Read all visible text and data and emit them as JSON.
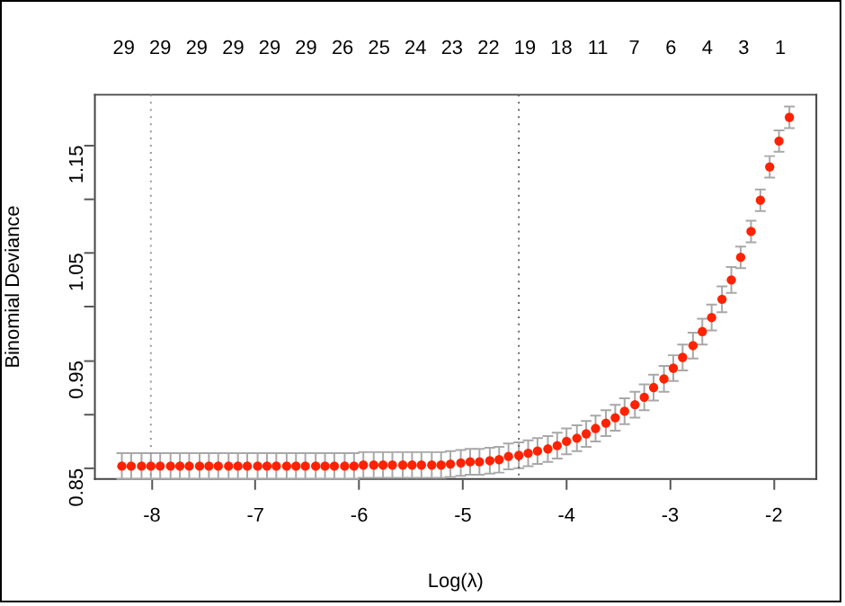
{
  "chart_data": {
    "type": "scatter",
    "xlabel": "Log(λ)",
    "ylabel": "Binomial Deviance",
    "marker": "circle",
    "grid": false,
    "legend": false,
    "xlim": [
      -8.55,
      -1.59
    ],
    "xticks": [
      -8,
      -7,
      -6,
      -5,
      -4,
      -3,
      -2
    ],
    "ylim": [
      0.84,
      1.197
    ],
    "yticks": [
      0.85,
      {
        "value": 0.9,
        "label": null
      },
      0.95,
      {
        "value": 1.0,
        "label": null
      },
      1.05,
      {
        "value": 1.1,
        "label": null
      },
      1.15
    ],
    "annotations": [
      "29",
      "29",
      "29",
      "29",
      "29",
      "29",
      "26",
      "25",
      "24",
      "23",
      "22",
      "19",
      "18",
      "11",
      "7",
      "6",
      "4",
      "3",
      "1"
    ],
    "ref_lines": [
      {
        "axis": "x",
        "value": -8.01,
        "color": "#999999",
        "line_style": "dotted"
      },
      {
        "axis": "x",
        "value": -4.46,
        "color": "#666666",
        "line_style": "dotted"
      }
    ],
    "series": [
      {
        "color": "#ff2200",
        "x": [
          -8.29,
          -8.2,
          -8.1,
          -8.01,
          -7.92,
          -7.82,
          -7.73,
          -7.64,
          -7.54,
          -7.45,
          -7.36,
          -7.26,
          -7.17,
          -7.08,
          -6.98,
          -6.89,
          -6.8,
          -6.7,
          -6.61,
          -6.52,
          -6.42,
          -6.33,
          -6.24,
          -6.14,
          -6.05,
          -5.96,
          -5.86,
          -5.77,
          -5.68,
          -5.58,
          -5.49,
          -5.4,
          -5.3,
          -5.21,
          -5.12,
          -5.02,
          -4.93,
          -4.84,
          -4.74,
          -4.65,
          -4.56,
          -4.46,
          -4.37,
          -4.28,
          -4.18,
          -4.09,
          -4.0,
          -3.9,
          -3.81,
          -3.72,
          -3.62,
          -3.53,
          -3.44,
          -3.34,
          -3.25,
          -3.16,
          -3.06,
          -2.97,
          -2.88,
          -2.78,
          -2.69,
          -2.6,
          -2.5,
          -2.41,
          -2.32,
          -2.22,
          -2.13,
          -2.04,
          -1.95,
          -1.85
        ],
        "values": [
          0.852,
          0.852,
          0.852,
          0.852,
          0.852,
          0.852,
          0.852,
          0.852,
          0.852,
          0.852,
          0.852,
          0.852,
          0.852,
          0.852,
          0.852,
          0.852,
          0.852,
          0.852,
          0.852,
          0.852,
          0.852,
          0.852,
          0.852,
          0.852,
          0.852,
          0.853,
          0.853,
          0.853,
          0.853,
          0.853,
          0.853,
          0.853,
          0.853,
          0.853,
          0.854,
          0.855,
          0.856,
          0.856,
          0.857,
          0.858,
          0.861,
          0.862,
          0.864,
          0.866,
          0.868,
          0.871,
          0.875,
          0.878,
          0.882,
          0.887,
          0.892,
          0.897,
          0.903,
          0.909,
          0.916,
          0.925,
          0.933,
          0.943,
          0.953,
          0.964,
          0.977,
          0.99,
          1.007,
          1.025,
          1.046,
          1.07,
          1.099,
          1.13,
          1.154,
          1.176
        ],
        "errors": [
          0.012,
          0.012,
          0.012,
          0.012,
          0.012,
          0.012,
          0.012,
          0.012,
          0.012,
          0.012,
          0.012,
          0.012,
          0.012,
          0.012,
          0.012,
          0.012,
          0.012,
          0.012,
          0.012,
          0.012,
          0.012,
          0.012,
          0.012,
          0.012,
          0.012,
          0.012,
          0.012,
          0.012,
          0.012,
          0.012,
          0.012,
          0.012,
          0.012,
          0.012,
          0.012,
          0.012,
          0.012,
          0.012,
          0.012,
          0.012,
          0.012,
          0.012,
          0.012,
          0.012,
          0.012,
          0.012,
          0.012,
          0.012,
          0.012,
          0.012,
          0.012,
          0.012,
          0.012,
          0.012,
          0.012,
          0.012,
          0.012,
          0.012,
          0.012,
          0.012,
          0.012,
          0.012,
          0.012,
          0.012,
          0.01,
          0.01,
          0.01,
          0.01,
          0.01,
          0.01
        ]
      }
    ]
  }
}
